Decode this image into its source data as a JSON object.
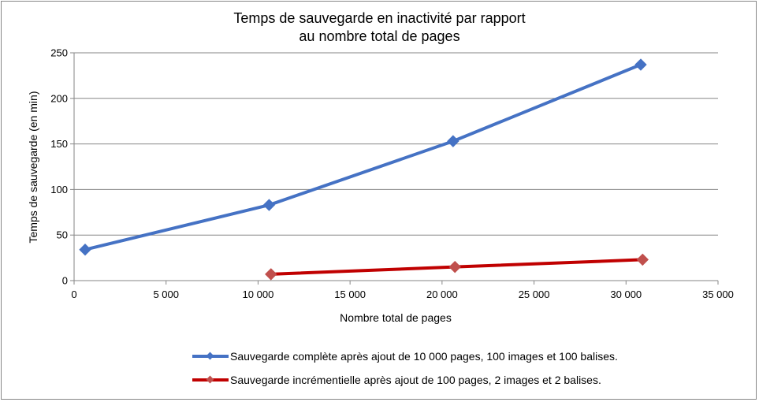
{
  "chart_data": {
    "type": "line",
    "title_lines": [
      "Temps de sauvegarde en inactivité par rapport",
      "au nombre total de pages"
    ],
    "xlabel": "Nombre total de pages",
    "ylabel": "Temps de sauvegarde (en min)",
    "xlim": [
      0,
      35000
    ],
    "ylim": [
      0,
      250
    ],
    "x_ticks": [
      0,
      5000,
      10000,
      15000,
      20000,
      25000,
      30000,
      35000
    ],
    "x_tick_labels": [
      "0",
      "5 000",
      "10 000",
      "15 000",
      "20 000",
      "25 000",
      "30 000",
      "35 000"
    ],
    "y_ticks": [
      0,
      50,
      100,
      150,
      200,
      250
    ],
    "y_tick_labels": [
      "0",
      "50",
      "100",
      "150",
      "200",
      "250"
    ],
    "grid": "horizontal",
    "legend_position": "bottom",
    "series": [
      {
        "name": "Sauvegarde complète après ajout de 10 000 pages, 100 images et 100 balises.",
        "color": "#4572C4",
        "x": [
          600,
          10600,
          20600,
          30800
        ],
        "values": [
          34,
          83,
          153,
          237
        ]
      },
      {
        "name": "Sauvegarde incrémentielle après ajout de 100 pages, 2 images et 2 balises.",
        "color": "#C0504D",
        "line_color": "#C00000",
        "x": [
          10700,
          20700,
          30900
        ],
        "values": [
          7,
          15,
          23
        ]
      }
    ]
  }
}
